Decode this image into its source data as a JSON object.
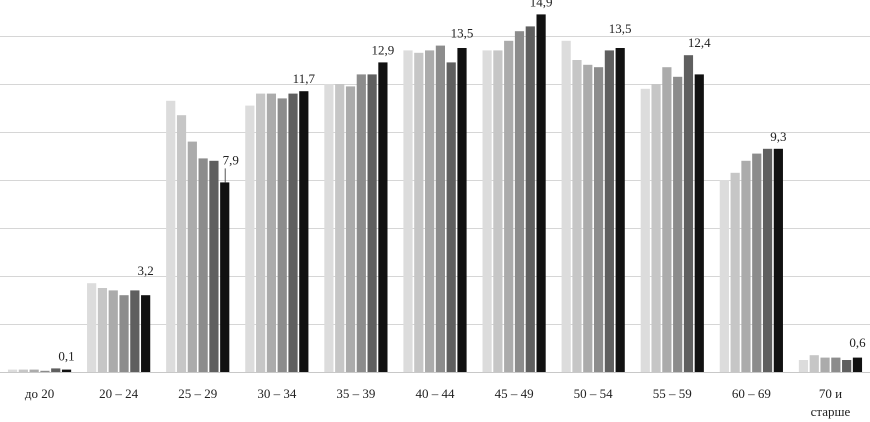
{
  "chart_data": {
    "type": "bar",
    "title": "",
    "xlabel": "",
    "ylabel": "",
    "ylim": [
      0,
      15.5
    ],
    "grid": true,
    "legend": "none",
    "categories": [
      "до 20",
      "20 – 24",
      "25 – 29",
      "30 – 34",
      "35 – 39",
      "40 – 44",
      "45 – 49",
      "50 – 54",
      "55 – 59",
      "60 – 69",
      "70 и старше"
    ],
    "series_colors": [
      "#dcdcdc",
      "#c6c6c6",
      "#ababab",
      "#8c8c8c",
      "#5f5f5f",
      "#111111"
    ],
    "series": [
      {
        "values": [
          0.1,
          3.7,
          11.3,
          11.1,
          12.0,
          13.4,
          13.4,
          13.8,
          11.8,
          8.0,
          0.5
        ]
      },
      {
        "values": [
          0.1,
          3.5,
          10.7,
          11.6,
          12.0,
          13.3,
          13.4,
          13.0,
          12.0,
          8.3,
          0.7
        ]
      },
      {
        "values": [
          0.1,
          3.4,
          9.6,
          11.6,
          11.9,
          13.4,
          13.8,
          12.8,
          12.7,
          8.8,
          0.6
        ]
      },
      {
        "values": [
          0.05,
          3.2,
          8.9,
          11.4,
          12.4,
          13.6,
          14.2,
          12.7,
          12.3,
          9.1,
          0.6
        ]
      },
      {
        "values": [
          0.15,
          3.4,
          8.8,
          11.6,
          12.4,
          12.9,
          14.4,
          13.4,
          13.2,
          9.3,
          0.5
        ]
      },
      {
        "values": [
          0.1,
          3.2,
          7.9,
          11.7,
          12.9,
          13.5,
          14.9,
          13.5,
          12.4,
          9.3,
          0.6
        ]
      }
    ],
    "data_labels": [
      {
        "category_index": 0,
        "text": "0,1"
      },
      {
        "category_index": 1,
        "text": "3,2"
      },
      {
        "category_index": 2,
        "text": "7,9"
      },
      {
        "category_index": 3,
        "text": "11,7"
      },
      {
        "category_index": 4,
        "text": "12,9"
      },
      {
        "category_index": 5,
        "text": "13,5"
      },
      {
        "category_index": 6,
        "text": "14,9"
      },
      {
        "category_index": 7,
        "text": "13,5"
      },
      {
        "category_index": 8,
        "text": "12,4"
      },
      {
        "category_index": 9,
        "text": "9,3"
      },
      {
        "category_index": 10,
        "text": "0,6"
      }
    ]
  }
}
